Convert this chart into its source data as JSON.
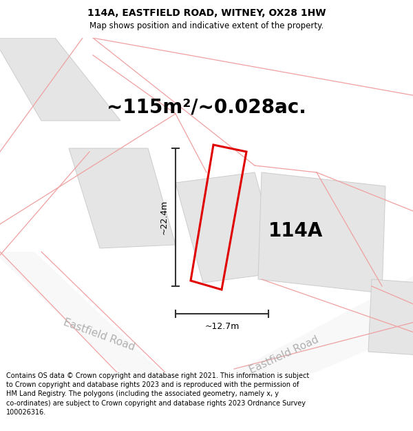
{
  "title": "114A, EASTFIELD ROAD, WITNEY, OX28 1HW",
  "subtitle": "Map shows position and indicative extent of the property.",
  "area_text": "~115m²/~0.028ac.",
  "dim_height": "~22.4m",
  "dim_width": "~12.7m",
  "label": "114A",
  "footer": "Contains OS data © Crown copyright and database right 2021. This information is subject to Crown copyright and database rights 2023 and is reproduced with the permission of HM Land Registry. The polygons (including the associated geometry, namely x, y co-ordinates) are subject to Crown copyright and database rights 2023 Ordnance Survey 100026316.",
  "bg_color": "#ffffff",
  "building_fill": "#e8e8e8",
  "road_line_color": "#f0a0a0",
  "highlight_color": "#e00000",
  "dim_color": "#333333",
  "road_label_color": "#b0b0b0",
  "title_fontsize": 10,
  "subtitle_fontsize": 8.5,
  "area_fontsize": 20,
  "label_fontsize": 20,
  "footer_fontsize": 7.0
}
